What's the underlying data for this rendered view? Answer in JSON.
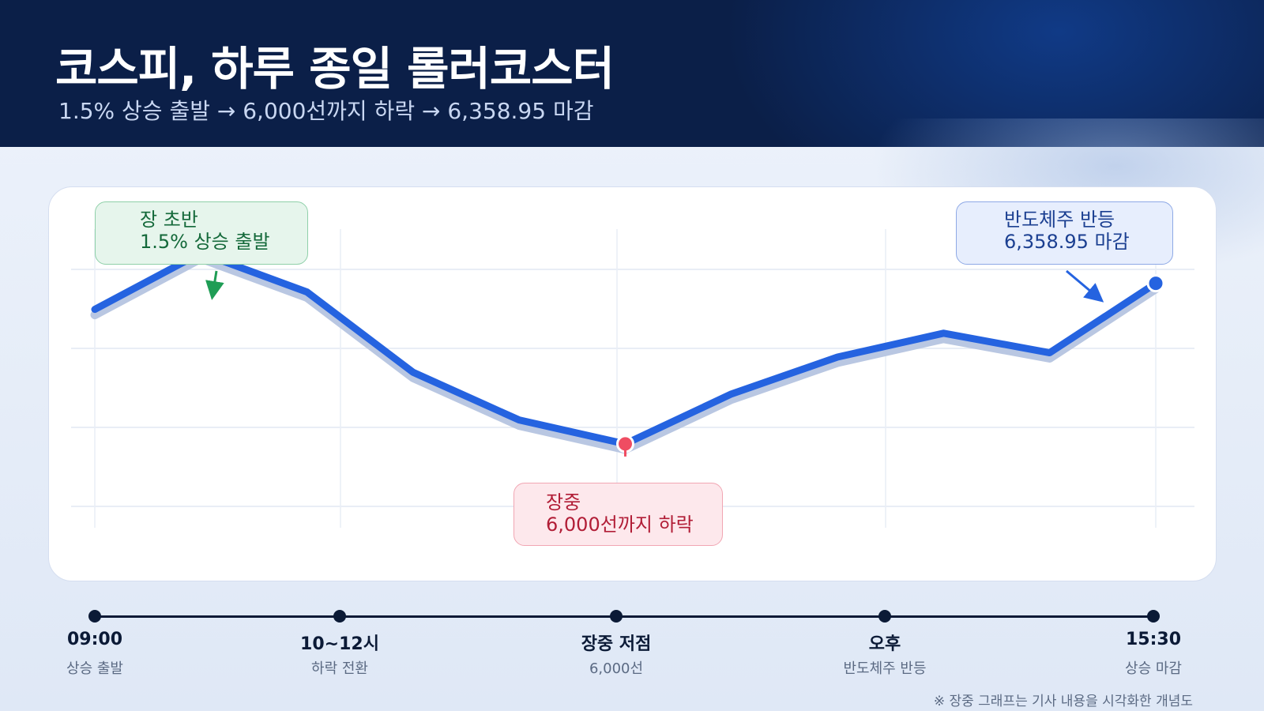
{
  "header": {
    "title": "코스피, 하루 종일 롤러코스터",
    "subtitle": "1.5% 상승 출발 → 6,000선까지 하락 → 6,358.95 마감"
  },
  "chart_data": {
    "type": "line",
    "title": "",
    "xlabel": "",
    "ylabel": "",
    "grid": true,
    "series": [
      {
        "values": [
          62,
          88,
          70,
          33,
          11,
          0,
          23,
          40,
          51,
          42,
          74
        ]
      }
    ],
    "ylim": [
      -35,
      107
    ],
    "colors": {
      "line": "#2563e0",
      "shadow": "#b9c7e2",
      "start": "#1f9d55",
      "low": "#ef4d62",
      "close": "#2563e0"
    },
    "annotations": [
      {
        "id": "start",
        "lines": [
          "장 초반",
          "1.5% 상승 출발"
        ]
      },
      {
        "id": "low",
        "lines": [
          "장중",
          "6,000선까지 하락"
        ]
      },
      {
        "id": "close",
        "lines": [
          "반도체주 반등",
          "6,358.95 마감"
        ]
      }
    ]
  },
  "timeline": [
    {
      "time": "09:00",
      "desc": "상승 출발"
    },
    {
      "time": "10~12시",
      "desc": "하락 전환"
    },
    {
      "time": "장중 저점",
      "desc": "6,000선"
    },
    {
      "time": "오후",
      "desc": "반도체주 반등"
    },
    {
      "time": "15:30",
      "desc": "상승 마감"
    }
  ],
  "footnote": "※ 장중 그래프는 기사 내용을 시각화한 개념도"
}
